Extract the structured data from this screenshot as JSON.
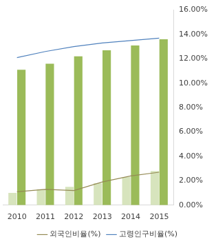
{
  "chart_data": {
    "type": "bar",
    "categories": [
      "2010",
      "2011",
      "2012",
      "2013",
      "2014",
      "2015"
    ],
    "series": [
      {
        "type": "bar",
        "color": "#d7e4bd",
        "values": [
          1.0,
          1.3,
          1.5,
          1.8,
          2.3,
          2.8
        ]
      },
      {
        "type": "bar",
        "color": "#9bbb59",
        "values": [
          11.1,
          11.6,
          12.2,
          12.7,
          13.1,
          13.6
        ]
      },
      {
        "name": "외국인비율(%)",
        "type": "line",
        "color": "#948a54",
        "values": [
          1.1,
          1.3,
          1.2,
          1.9,
          2.4,
          2.7
        ]
      },
      {
        "name": "고령인구비율(%)",
        "type": "line",
        "color": "#4f81bd",
        "values": [
          12.1,
          12.6,
          13.0,
          13.3,
          13.5,
          13.7
        ]
      }
    ],
    "ylim": [
      0,
      16
    ],
    "yticks": [
      {
        "value": 0,
        "label": "0.00%"
      },
      {
        "value": 2,
        "label": "2.00%"
      },
      {
        "value": 4,
        "label": "4.00%"
      },
      {
        "value": 6,
        "label": "6.00%"
      },
      {
        "value": 8,
        "label": "8.00%"
      },
      {
        "value": 10,
        "label": "10.00%"
      },
      {
        "value": 12,
        "label": "12.00%"
      },
      {
        "value": 14,
        "label": "14.00%"
      },
      {
        "value": 16,
        "label": "16.00%"
      }
    ],
    "grid": false,
    "legend": "bottom"
  }
}
